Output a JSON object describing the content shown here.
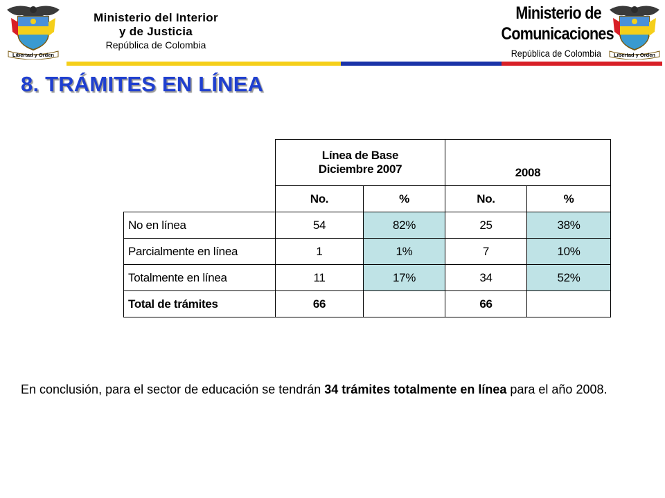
{
  "header": {
    "left_ministry": {
      "line1": "Ministerio del Interior",
      "line2": "y de Justicia",
      "line3": "República de Colombia",
      "seal_motto": "Libertad y Orden"
    },
    "right_ministry": {
      "line1": "Ministerio de",
      "line2": "Comunicaciones",
      "line3": "República de Colombia",
      "seal_motto": "Libertad y Orden"
    },
    "flag_colors": {
      "yellow": "#f5cf1a",
      "blue": "#1a33a8",
      "red": "#d81f26"
    }
  },
  "section_title": "8. TRÁMITES EN LÍNEA",
  "table": {
    "group_headers": [
      "Línea de Base Diciembre 2007",
      "2008"
    ],
    "group_header_1_line1": "Línea de Base",
    "group_header_1_line2": "Diciembre 2007",
    "sub_headers": [
      "No.",
      "%",
      "No.",
      "%"
    ],
    "rows": [
      {
        "label": "No en línea",
        "no_2007": "54",
        "pct_2007": "82%",
        "no_2008": "25",
        "pct_2008": "38%"
      },
      {
        "label": "Parcialmente en línea",
        "no_2007": "1",
        "pct_2007": "1%",
        "no_2008": "7",
        "pct_2008": "10%"
      },
      {
        "label": "Totalmente en línea",
        "no_2007": "11",
        "pct_2007": "17%",
        "no_2008": "34",
        "pct_2008": "52%"
      }
    ],
    "total": {
      "label": "Total de trámites",
      "no_2007": "66",
      "no_2008": "66"
    },
    "highlight_color": "#bfe3e6"
  },
  "conclusion": {
    "before": "En conclusión, para el sector de educación se tendrán ",
    "bold": "34 trámites totalmente en línea",
    "after": " para el año 2008."
  }
}
